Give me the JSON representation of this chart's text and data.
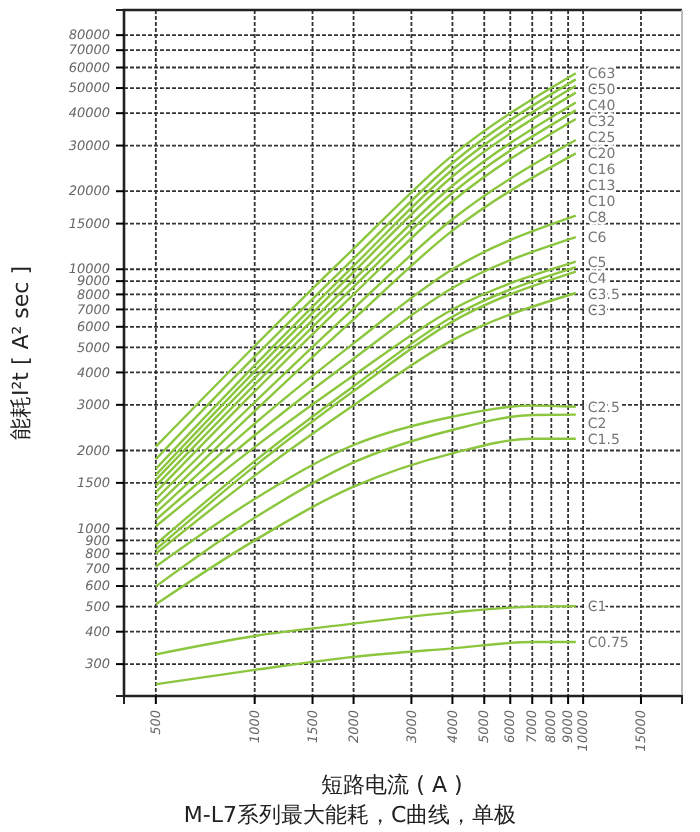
{
  "chart_data": {
    "type": "line",
    "title": "M-L7系列最大能耗，C曲线，单极",
    "xlabel": "短路电流 ( A )",
    "ylabel": "能耗I²t [ A² sec ]",
    "log": "xy",
    "grid": true,
    "legend": false,
    "marker": "none",
    "line_style": "solid",
    "xlim": [
      400,
      20000
    ],
    "xticks": [
      500,
      1000,
      1500,
      2000,
      3000,
      4000,
      5000,
      6000,
      7000,
      8000,
      9000,
      10000,
      15000
    ],
    "ylim": [
      226,
      100000
    ],
    "yticks": [
      300,
      400,
      500,
      600,
      700,
      800,
      900,
      1000,
      1500,
      2000,
      3000,
      4000,
      5000,
      6000,
      7000,
      8000,
      9000,
      10000,
      15000,
      20000,
      30000,
      40000,
      50000,
      60000,
      70000,
      80000
    ],
    "x": [
      500,
      1000,
      2000,
      4000,
      9500
    ],
    "series": [
      {
        "name": "C63",
        "color": "#8cc63f",
        "values": [
          2070,
          5060,
          12000,
          27500,
          57000
        ]
      },
      {
        "name": "C50",
        "color": "#8cc63f",
        "values": [
          1850,
          4600,
          11000,
          25700,
          54000
        ]
      },
      {
        "name": "C40",
        "color": "#8cc63f",
        "values": [
          1700,
          4260,
          10300,
          24200,
          51000
        ]
      },
      {
        "name": "C32",
        "color": "#8cc63f",
        "values": [
          1610,
          4040,
          9750,
          22800,
          48000
        ]
      },
      {
        "name": "C25",
        "color": "#8cc63f",
        "values": [
          1540,
          3810,
          9100,
          21000,
          44000
        ]
      },
      {
        "name": "C20",
        "color": "#8cc63f",
        "values": [
          1460,
          3590,
          8550,
          19700,
          41000
        ]
      },
      {
        "name": "C16",
        "color": "#8cc63f",
        "values": [
          1380,
          3380,
          8000,
          18300,
          38000
        ]
      },
      {
        "name": "C13",
        "color": "#8cc63f",
        "values": [
          1300,
          3070,
          7050,
          15600,
          31500
        ]
      },
      {
        "name": "C10",
        "color": "#8cc63f",
        "values": [
          1220,
          2840,
          6410,
          14100,
          28000
        ]
      },
      {
        "name": "C8",
        "color": "#8cc63f",
        "values": [
          1150,
          2540,
          5180,
          10000,
          16100
        ]
      },
      {
        "name": "C6",
        "color": "#8cc63f",
        "values": [
          1080,
          2290,
          4520,
          8470,
          13300
        ]
      },
      {
        "name": "C5",
        "color": "#8cc63f",
        "values": [
          1020,
          2060,
          3890,
          7000,
          10700
        ]
      },
      {
        "name": "C4",
        "color": "#8cc63f",
        "values": [
          870,
          1820,
          3540,
          6560,
          10200
        ]
      },
      {
        "name": "C3.5",
        "color": "#8cc63f",
        "values": [
          830,
          1740,
          3390,
          6280,
          9800
        ]
      },
      {
        "name": "C3",
        "color": "#8cc63f",
        "values": [
          800,
          1600,
          2990,
          5330,
          8100
        ]
      },
      {
        "name": "C2.5",
        "color": "#8cc63f",
        "x": [
          500,
          1000,
          2000,
          4000,
          7000,
          9500
        ],
        "values": [
          714,
          1300,
          2100,
          2700,
          2980,
          2950
        ]
      },
      {
        "name": "C2",
        "color": "#8cc63f",
        "x": [
          500,
          1000,
          2000,
          4000,
          7000,
          9500
        ],
        "values": [
          598,
          1100,
          1800,
          2400,
          2740,
          2750
        ]
      },
      {
        "name": "C1.5",
        "color": "#8cc63f",
        "x": [
          500,
          1000,
          2000,
          4000,
          7000,
          9500
        ],
        "values": [
          510,
          900,
          1450,
          1950,
          2220,
          2220
        ]
      },
      {
        "name": "C1",
        "color": "#8cc63f",
        "x": [
          500,
          1000,
          2000,
          4000,
          7000,
          9500
        ],
        "values": [
          327,
          385,
          430,
          475,
          500,
          502
        ]
      },
      {
        "name": "C0.75",
        "color": "#8cc63f",
        "x": [
          500,
          1000,
          2000,
          4000,
          7000,
          9500
        ],
        "values": [
          251,
          285,
          320,
          345,
          365,
          365
        ]
      }
    ]
  }
}
